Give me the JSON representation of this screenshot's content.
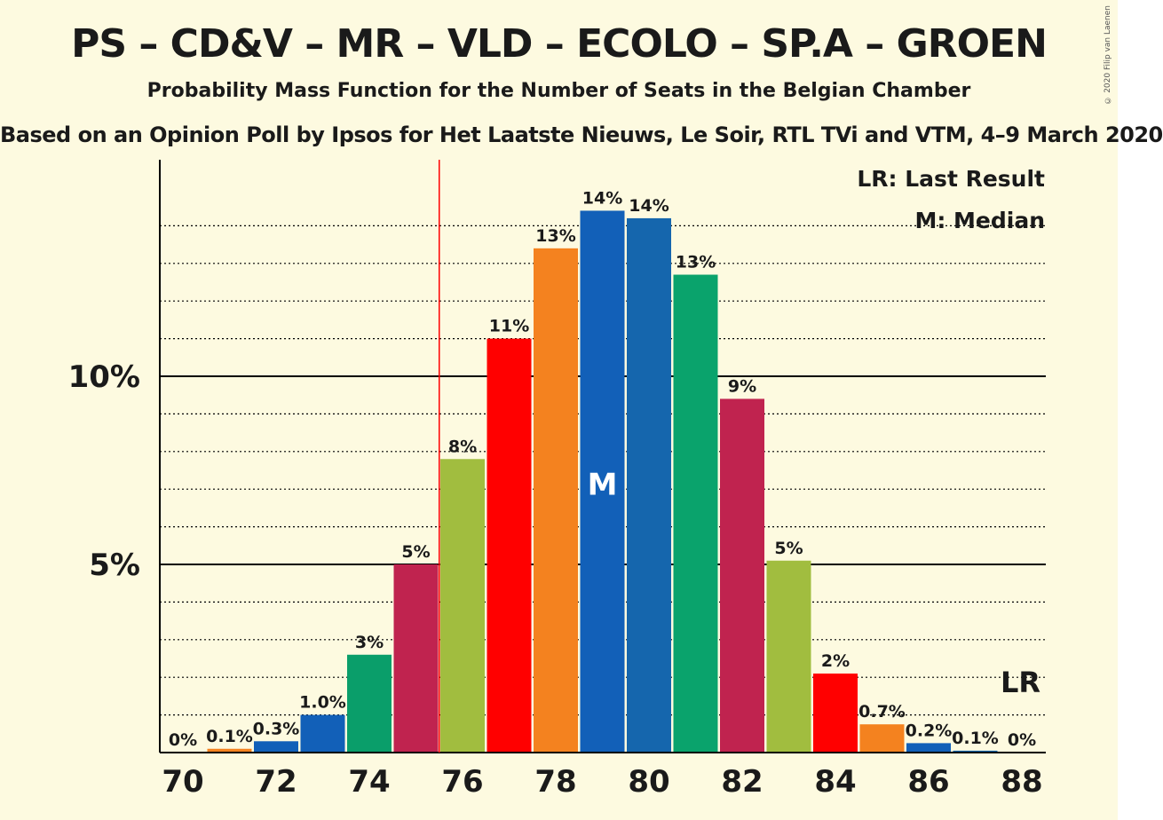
{
  "titles": {
    "main": "PS – CD&V – MR – VLD – ECOLO – SP.A – GROEN",
    "subtitle": "Probability Mass Function for the Number of Seats in the Belgian Chamber",
    "source": "Based on an Opinion Poll by Ipsos for Het Laatste Nieuws, Le Soir, RTL TVi and VTM, 4–9 March 2020"
  },
  "copyright": "© 2020 Filip van Laenen",
  "legend": {
    "lr": "LR: Last Result",
    "median": "M: Median"
  },
  "markers": {
    "median_label": "M",
    "lr_label": "LR",
    "median_seat": 79,
    "last_result_seat": 75.5,
    "lr_label_seat": 88
  },
  "colors": {
    "background": "#fdfae0",
    "last_result_line": "#ff0000"
  },
  "chart_data": {
    "type": "bar",
    "x": [
      70,
      71,
      72,
      73,
      74,
      75,
      76,
      77,
      78,
      79,
      80,
      81,
      82,
      83,
      84,
      85,
      86,
      87,
      88
    ],
    "values": [
      0.0,
      0.1,
      0.3,
      1.0,
      2.6,
      5.0,
      7.8,
      11.0,
      13.4,
      14.4,
      14.2,
      12.7,
      9.4,
      5.1,
      2.1,
      0.75,
      0.25,
      0.05,
      0.0
    ],
    "labels": [
      "0%",
      "0.1%",
      "0.3%",
      "1.0%",
      "3%",
      "5%",
      "8%",
      "11%",
      "13%",
      "14%",
      "14%",
      "13%",
      "9%",
      "5%",
      "2%",
      "0.7%",
      "0.2%",
      "0.1%",
      "0%"
    ],
    "bar_colors": [
      "#cccccc",
      "#f4821f",
      "#1260b8",
      "#1260b8",
      "#0a9e6a",
      "#c0234f",
      "#a1bd3f",
      "#ff0000",
      "#f4821f",
      "#1260b8",
      "#1566ad",
      "#0aa36c",
      "#c0234f",
      "#a1bd3f",
      "#ff0000",
      "#f4821f",
      "#1260b8",
      "#1566ad",
      "#0aa36c"
    ],
    "x_ticks": [
      70,
      72,
      74,
      76,
      78,
      80,
      82,
      84,
      86,
      88
    ],
    "y_ticks": [
      {
        "value": 5,
        "label": "5%"
      },
      {
        "value": 10,
        "label": "10%"
      }
    ],
    "ylim": [
      0,
      15.5
    ],
    "grid": "dotted every 1%, solid at labelled ticks"
  }
}
